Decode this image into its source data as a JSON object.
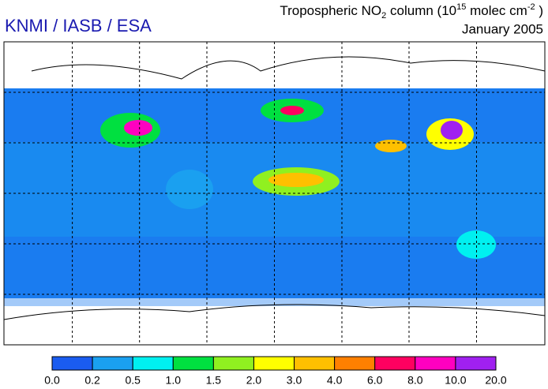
{
  "header": {
    "credit": "KNMI / IASB / ESA",
    "title_parts": [
      "Tropospheric NO",
      "2",
      " column (10",
      "15",
      " molec cm",
      "-2",
      " )"
    ],
    "date": "January 2005"
  },
  "colorbar": {
    "ticks": [
      {
        "value": 0,
        "label": "0.0"
      },
      0.2,
      0.5,
      {
        "value": 1,
        "label": "1.0"
      },
      1.5,
      {
        "value": 2,
        "label": "2.0"
      },
      {
        "value": 3,
        "label": "3.0"
      },
      {
        "value": 4,
        "label": "4.0"
      },
      {
        "value": 6,
        "label": "6.0"
      },
      {
        "value": 8,
        "label": "8.0"
      },
      {
        "value": 10,
        "label": "10.0"
      },
      {
        "value": 20,
        "label": "20.0"
      }
    ],
    "colors": [
      "#1a5cf0",
      "#1aa0f0",
      "#00f0f0",
      "#00e040",
      "#90f020",
      "#ffff00",
      "#ffc000",
      "#ff8000",
      "#ff0060",
      "#ff00c0",
      "#a020f0"
    ]
  }
}
